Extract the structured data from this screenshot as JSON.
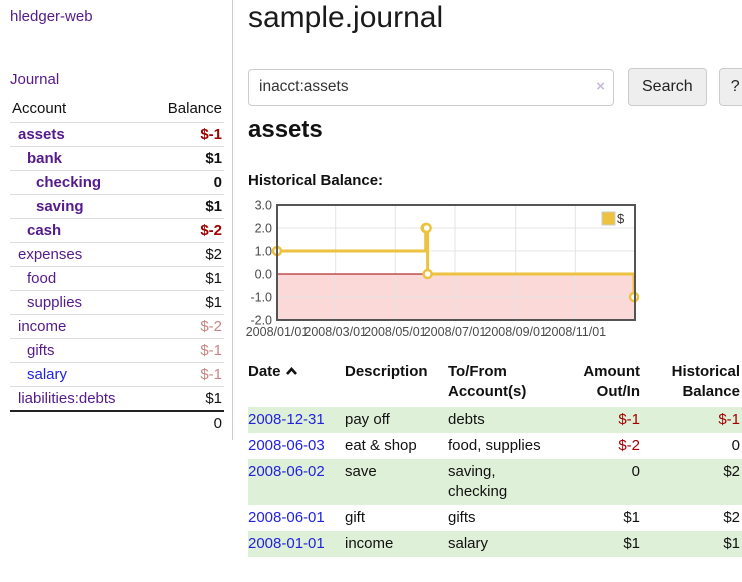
{
  "colors": {
    "link_purple": "#551a8b",
    "link_blue": "#2222dd",
    "negative": "#a00000",
    "negative_muted": "#c88484",
    "row_stripe_green": "#dff0d8",
    "series_gold": "#edc240"
  },
  "sidebar": {
    "app_title": "hledger-web",
    "nav": {
      "journal": "Journal"
    },
    "accounts_table": {
      "headers": {
        "account": "Account",
        "balance": "Balance"
      },
      "rows": [
        {
          "name": "assets",
          "balance": "$-1",
          "depth": 1,
          "bold": true
        },
        {
          "name": "bank",
          "balance": "$1",
          "depth": 2,
          "bold": true
        },
        {
          "name": "checking",
          "balance": "0",
          "depth": 3,
          "bold": true
        },
        {
          "name": "saving",
          "balance": "$1",
          "depth": 3,
          "bold": true
        },
        {
          "name": "cash",
          "balance": "$-2",
          "depth": 2,
          "bold": true
        },
        {
          "name": "expenses",
          "balance": "$2",
          "depth": 1,
          "bold": false
        },
        {
          "name": "food",
          "balance": "$1",
          "depth": 2,
          "bold": false
        },
        {
          "name": "supplies",
          "balance": "$1",
          "depth": 2,
          "bold": false
        },
        {
          "name": "income",
          "balance": "$-2",
          "depth": 1,
          "bold": false
        },
        {
          "name": "gifts",
          "balance": "$-1",
          "depth": 2,
          "bold": false
        },
        {
          "name": "salary",
          "balance": "$-1",
          "depth": 2,
          "bold": false
        },
        {
          "name": "liabilities:debts",
          "balance": "$1",
          "depth": 1,
          "bold": false
        }
      ],
      "total": "0"
    }
  },
  "main": {
    "title": "sample.journal",
    "search": {
      "value": "inacct:assets",
      "clear_icon": "×",
      "search_button": "Search",
      "help_button": "?"
    },
    "account_heading": "assets",
    "chart_title": "Historical Balance:"
  },
  "chart_data": {
    "type": "line",
    "step": true,
    "title": "Historical Balance:",
    "series": [
      {
        "name": "$",
        "color": "#edc240",
        "points": [
          [
            "2008-01-01",
            1
          ],
          [
            "2008-06-01",
            2
          ],
          [
            "2008-06-02",
            2
          ],
          [
            "2008-06-03",
            0
          ],
          [
            "2008-12-31",
            -1
          ]
        ]
      }
    ],
    "x_range": [
      "2008-01-01",
      "2009-01-01"
    ],
    "x_ticks": [
      "2008/01/01",
      "2008/03/01",
      "2008/05/01",
      "2008/07/01",
      "2008/09/01",
      "2008/11/01"
    ],
    "y_ticks": [
      3.0,
      2.0,
      1.0,
      0.0,
      -1.0,
      -2.0
    ],
    "ylim": [
      -2,
      3
    ],
    "grid": true,
    "zero_line_color": "#a00000",
    "negative_region_color": "#fbd9d9",
    "legend": {
      "label": "$",
      "position": "top-right"
    }
  },
  "register_table": {
    "headers": {
      "date": "Date",
      "description": "Description",
      "accounts": "To/From Account(s)",
      "amount": "Amount Out/In",
      "balance": "Historical Balance"
    },
    "sort": {
      "column": "date",
      "direction": "ascending"
    },
    "rows": [
      {
        "date": "2008-12-31",
        "description": "pay off",
        "accounts": "debts",
        "amount": "$-1",
        "balance": "$-1"
      },
      {
        "date": "2008-06-03",
        "description": "eat & shop",
        "accounts": "food, supplies",
        "amount": "$-2",
        "balance": "0"
      },
      {
        "date": "2008-06-02",
        "description": "save",
        "accounts": "saving, checking",
        "amount": "0",
        "balance": "$2"
      },
      {
        "date": "2008-06-01",
        "description": "gift",
        "accounts": "gifts",
        "amount": "$1",
        "balance": "$2"
      },
      {
        "date": "2008-01-01",
        "description": "income",
        "accounts": "salary",
        "amount": "$1",
        "balance": "$1"
      }
    ]
  }
}
